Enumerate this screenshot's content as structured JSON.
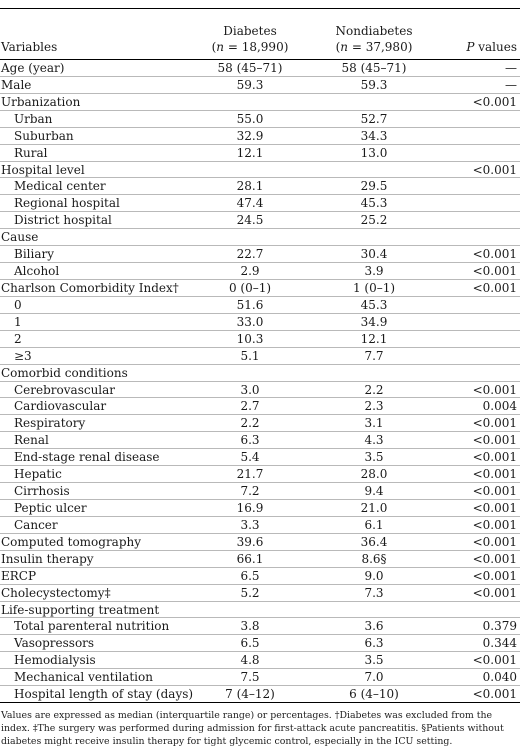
{
  "header": {
    "variables": "Variables",
    "diabetes_name": "Diabetes",
    "diabetes_n_label": "n",
    "diabetes_n_value": " = 18,990",
    "nondiabetes_name": "Nondiabetes",
    "nondiabetes_n_label": "n",
    "nondiabetes_n_value": " = 37,980",
    "p_label": "P",
    "p_suffix": " values"
  },
  "rows": [
    {
      "label": "Age (year)",
      "indent": false,
      "diabetes": "58 (45–71)",
      "nondiabetes": "58 (45–71)",
      "p": "—"
    },
    {
      "label": "Male",
      "indent": false,
      "diabetes": "59.3",
      "nondiabetes": "59.3",
      "p": "—"
    },
    {
      "label": "Urbanization",
      "indent": false,
      "diabetes": "",
      "nondiabetes": "",
      "p": "<0.001"
    },
    {
      "label": "Urban",
      "indent": true,
      "diabetes": "55.0",
      "nondiabetes": "52.7",
      "p": ""
    },
    {
      "label": "Suburban",
      "indent": true,
      "diabetes": "32.9",
      "nondiabetes": "34.3",
      "p": ""
    },
    {
      "label": "Rural",
      "indent": true,
      "diabetes": "12.1",
      "nondiabetes": "13.0",
      "p": ""
    },
    {
      "label": "Hospital level",
      "indent": false,
      "diabetes": "",
      "nondiabetes": "",
      "p": "<0.001"
    },
    {
      "label": "Medical center",
      "indent": true,
      "diabetes": "28.1",
      "nondiabetes": "29.5",
      "p": ""
    },
    {
      "label": "Regional hospital",
      "indent": true,
      "diabetes": "47.4",
      "nondiabetes": "45.3",
      "p": ""
    },
    {
      "label": "District hospital",
      "indent": true,
      "diabetes": "24.5",
      "nondiabetes": "25.2",
      "p": ""
    },
    {
      "label": "Cause",
      "indent": false,
      "diabetes": "",
      "nondiabetes": "",
      "p": ""
    },
    {
      "label": "Biliary",
      "indent": true,
      "diabetes": "22.7",
      "nondiabetes": "30.4",
      "p": "<0.001"
    },
    {
      "label": "Alcohol",
      "indent": true,
      "diabetes": "2.9",
      "nondiabetes": "3.9",
      "p": "<0.001"
    },
    {
      "label": "Charlson Comorbidity Index†",
      "indent": false,
      "diabetes": "0 (0–1)",
      "nondiabetes": "1 (0–1)",
      "p": "<0.001"
    },
    {
      "label": "0",
      "indent": true,
      "diabetes": "51.6",
      "nondiabetes": "45.3",
      "p": ""
    },
    {
      "label": "1",
      "indent": true,
      "diabetes": "33.0",
      "nondiabetes": "34.9",
      "p": ""
    },
    {
      "label": "2",
      "indent": true,
      "diabetes": "10.3",
      "nondiabetes": "12.1",
      "p": ""
    },
    {
      "label": "≥3",
      "indent": true,
      "diabetes": "5.1",
      "nondiabetes": "7.7",
      "p": ""
    },
    {
      "label": "Comorbid conditions",
      "indent": false,
      "diabetes": "",
      "nondiabetes": "",
      "p": ""
    },
    {
      "label": "Cerebrovascular",
      "indent": true,
      "diabetes": "3.0",
      "nondiabetes": "2.2",
      "p": "<0.001"
    },
    {
      "label": "Cardiovascular",
      "indent": true,
      "diabetes": "2.7",
      "nondiabetes": "2.3",
      "p": "0.004"
    },
    {
      "label": "Respiratory",
      "indent": true,
      "diabetes": "2.2",
      "nondiabetes": "3.1",
      "p": "<0.001"
    },
    {
      "label": "Renal",
      "indent": true,
      "diabetes": "6.3",
      "nondiabetes": "4.3",
      "p": "<0.001"
    },
    {
      "label": "End-stage renal disease",
      "indent": true,
      "diabetes": "5.4",
      "nondiabetes": "3.5",
      "p": "<0.001"
    },
    {
      "label": "Hepatic",
      "indent": true,
      "diabetes": "21.7",
      "nondiabetes": "28.0",
      "p": "<0.001"
    },
    {
      "label": "Cirrhosis",
      "indent": true,
      "diabetes": "7.2",
      "nondiabetes": "9.4",
      "p": "<0.001"
    },
    {
      "label": "Peptic ulcer",
      "indent": true,
      "diabetes": "16.9",
      "nondiabetes": "21.0",
      "p": "<0.001"
    },
    {
      "label": "Cancer",
      "indent": true,
      "diabetes": "3.3",
      "nondiabetes": "6.1",
      "p": "<0.001"
    },
    {
      "label": "Computed tomography",
      "indent": false,
      "diabetes": "39.6",
      "nondiabetes": "36.4",
      "p": "<0.001"
    },
    {
      "label": "Insulin therapy",
      "indent": false,
      "diabetes": "66.1",
      "nondiabetes": "8.6§",
      "p": "<0.001"
    },
    {
      "label": "ERCP",
      "indent": false,
      "diabetes": "6.5",
      "nondiabetes": "9.0",
      "p": "<0.001"
    },
    {
      "label": "Cholecystectomy‡",
      "indent": false,
      "diabetes": "5.2",
      "nondiabetes": "7.3",
      "p": "<0.001"
    },
    {
      "label": "Life-supporting treatment",
      "indent": false,
      "diabetes": "",
      "nondiabetes": "",
      "p": ""
    },
    {
      "label": "Total parenteral nutrition",
      "indent": true,
      "diabetes": "3.8",
      "nondiabetes": "3.6",
      "p": "0.379"
    },
    {
      "label": "Vasopressors",
      "indent": true,
      "diabetes": "6.5",
      "nondiabetes": "6.3",
      "p": "0.344"
    },
    {
      "label": "Hemodialysis",
      "indent": true,
      "diabetes": "4.8",
      "nondiabetes": "3.5",
      "p": "<0.001"
    },
    {
      "label": "Mechanical ventilation",
      "indent": true,
      "diabetes": "7.5",
      "nondiabetes": "7.0",
      "p": "0.040"
    },
    {
      "label": "Hospital length of stay (days)",
      "indent": true,
      "diabetes": "7 (4–12)",
      "nondiabetes": "6 (4–10)",
      "p": "<0.001"
    }
  ],
  "footnote": "Values are expressed as median (interquartile range) or percentages. †Diabetes was excluded from the index. ‡The surgery was performed during admission for first-attack acute pancreatitis. §Patients without diabetes might receive insulin therapy for tight glycemic control, especially in the ICU setting."
}
